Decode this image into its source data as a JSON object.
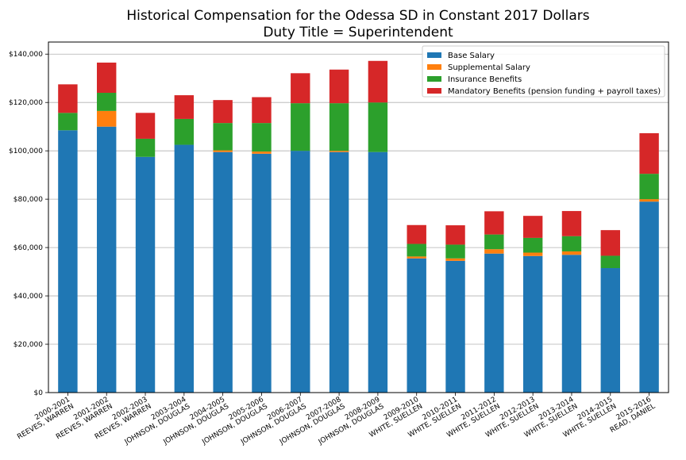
{
  "chart_data": {
    "type": "bar",
    "stacked": true,
    "title": "Historical Compensation for the Odessa SD in Constant 2017 Dollars",
    "subtitle": "Duty Title = Superintendent",
    "xlabel": "",
    "ylabel": "",
    "ylim": [
      0,
      145000
    ],
    "yticks": [
      0,
      20000,
      40000,
      60000,
      80000,
      100000,
      120000,
      140000
    ],
    "ytick_labels": [
      "$0",
      "$20,000",
      "$40,000",
      "$60,000",
      "$80,000",
      "$100,000",
      "$120,000",
      "$140,000"
    ],
    "grid": "horizontal",
    "legend_position": "top-right",
    "categories": [
      [
        "2000-2001",
        "REEVES, WARREN"
      ],
      [
        "2001-2002",
        "REEVES, WARREN"
      ],
      [
        "2002-2003",
        "REEVES, WARREN"
      ],
      [
        "2003-2004",
        "JOHNSON, DOUGLAS"
      ],
      [
        "2004-2005",
        "JOHNSON, DOUGLAS"
      ],
      [
        "2005-2006",
        "JOHNSON, DOUGLAS"
      ],
      [
        "2006-2007",
        "JOHNSON, DOUGLAS"
      ],
      [
        "2007-2008",
        "JOHNSON, DOUGLAS"
      ],
      [
        "2008-2009",
        "JOHNSON, DOUGLAS"
      ],
      [
        "2009-2010",
        "WHITE, SUELLEN"
      ],
      [
        "2010-2011",
        "WHITE, SUELLEN"
      ],
      [
        "2011-2012",
        "WHITE, SUELLEN"
      ],
      [
        "2012-2013",
        "WHITE, SUELLEN"
      ],
      [
        "2013-2014",
        "WHITE, SUELLEN"
      ],
      [
        "2014-2015",
        "WHITE, SUELLEN"
      ],
      [
        "2015-2016",
        "READ, DANIEL"
      ]
    ],
    "series": [
      {
        "name": "Base Salary",
        "color": "#1f77b4",
        "values": [
          108500,
          110000,
          97500,
          102500,
          99500,
          98800,
          100000,
          99500,
          99500,
          55500,
          54500,
          57500,
          56500,
          57000,
          51500,
          79000
        ]
      },
      {
        "name": "Supplemental Salary",
        "color": "#ff7f0e",
        "values": [
          0,
          6500,
          0,
          0,
          700,
          900,
          0,
          500,
          0,
          800,
          1000,
          1800,
          1400,
          1400,
          0,
          1000
        ]
      },
      {
        "name": "Insurance Benefits",
        "color": "#2ca02c",
        "values": [
          7200,
          7500,
          7500,
          10700,
          11300,
          11800,
          19700,
          19700,
          20500,
          5200,
          5700,
          6100,
          6100,
          6300,
          5100,
          10500
        ]
      },
      {
        "name": "Mandatory Benefits (pension funding + payroll taxes)",
        "color": "#d62728",
        "values": [
          11800,
          12500,
          10700,
          9800,
          9500,
          10700,
          12400,
          13900,
          17200,
          7800,
          8000,
          9600,
          9100,
          10400,
          10600,
          16800
        ]
      }
    ]
  }
}
